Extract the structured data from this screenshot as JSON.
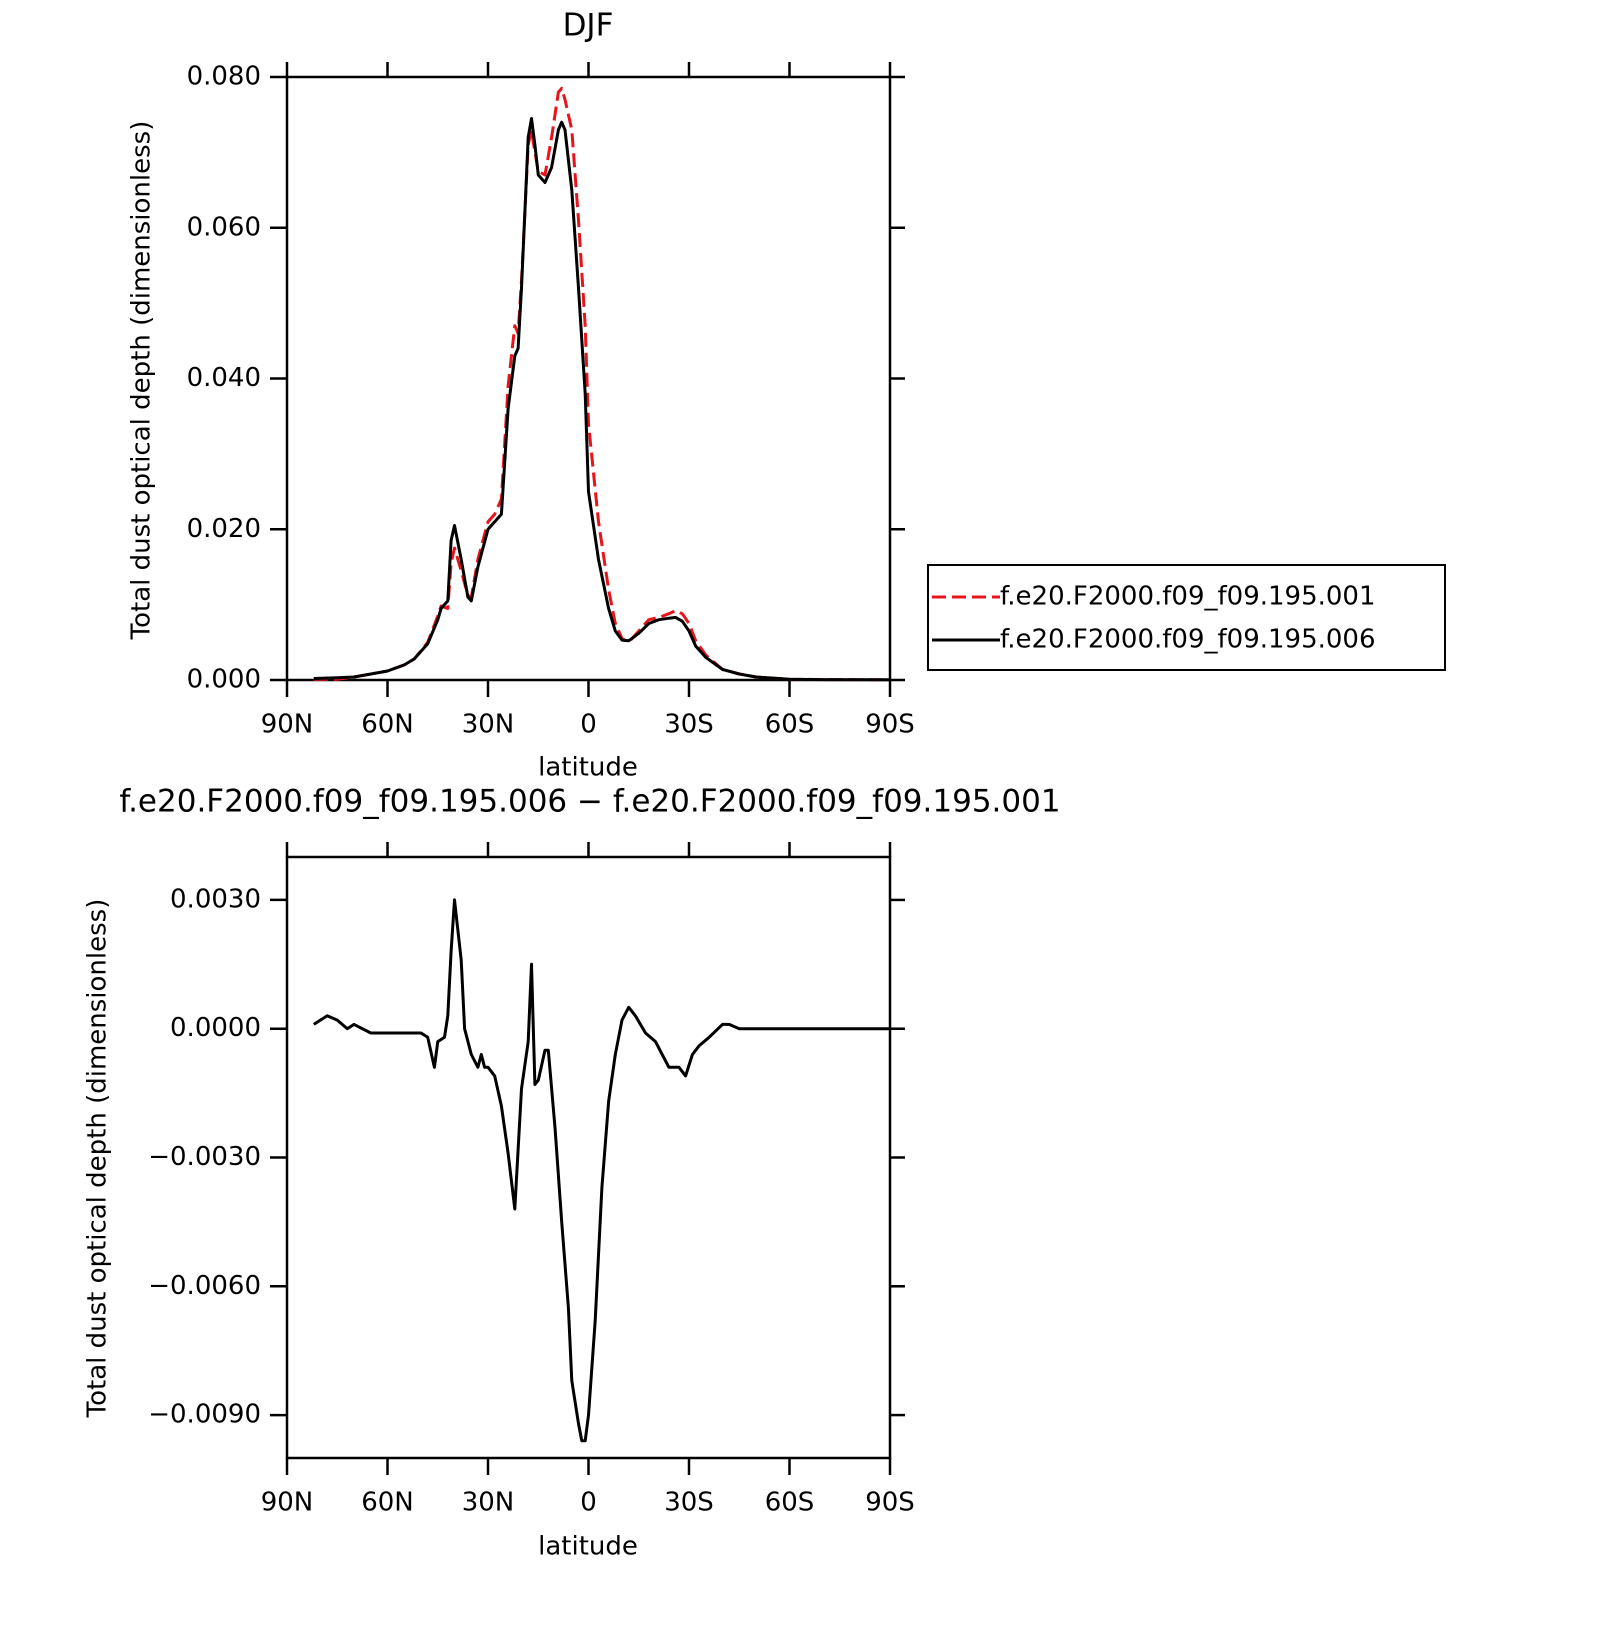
{
  "chart_data": [
    {
      "type": "line",
      "title": "DJF",
      "xlabel": "latitude",
      "ylabel": "Total dust optical depth (dimensionless)",
      "x": [
        82,
        75,
        70,
        65,
        60,
        55,
        52,
        48,
        45,
        44,
        42,
        41,
        40,
        38,
        36,
        35,
        33,
        30,
        28,
        26,
        24,
        22,
        21,
        20,
        18,
        17,
        16,
        15,
        13,
        11,
        9,
        8,
        7,
        5,
        3,
        1,
        0,
        -3,
        -6,
        -8,
        -10,
        -12,
        -15,
        -18,
        -21,
        -24,
        -26,
        -28,
        -30,
        -32,
        -35,
        -40,
        -45,
        -50,
        -60,
        -70,
        -90
      ],
      "series": [
        {
          "name": "f.e20.F2000.f09_f09.195.001",
          "color": "#e8141b",
          "linestyle": "dashed",
          "values": [
            0.0001,
            0.0001,
            0.0004,
            0.0008,
            0.0012,
            0.002,
            0.0028,
            0.005,
            0.0085,
            0.0098,
            0.0095,
            0.0155,
            0.0175,
            0.0145,
            0.0112,
            0.011,
            0.016,
            0.021,
            0.022,
            0.024,
            0.039,
            0.047,
            0.046,
            0.053,
            0.071,
            0.073,
            0.07,
            0.0675,
            0.067,
            0.072,
            0.078,
            0.0785,
            0.077,
            0.073,
            0.061,
            0.047,
            0.034,
            0.021,
            0.012,
            0.0075,
            0.0055,
            0.005,
            0.0065,
            0.008,
            0.0083,
            0.0088,
            0.0092,
            0.0088,
            0.0075,
            0.0052,
            0.0033,
            0.0014,
            0.0008,
            0.0004,
            0.0001,
            5e-05,
            2e-05
          ]
        },
        {
          "name": "f.e20.F2000.f09_f09.195.006",
          "color": "#000000",
          "linestyle": "solid",
          "values": [
            0.0002,
            0.0003,
            0.0004,
            0.0008,
            0.0012,
            0.002,
            0.0028,
            0.0048,
            0.008,
            0.0095,
            0.0105,
            0.0185,
            0.0205,
            0.016,
            0.011,
            0.0105,
            0.015,
            0.02,
            0.021,
            0.022,
            0.036,
            0.043,
            0.044,
            0.052,
            0.072,
            0.0745,
            0.071,
            0.067,
            0.066,
            0.068,
            0.073,
            0.074,
            0.073,
            0.065,
            0.052,
            0.038,
            0.025,
            0.016,
            0.0095,
            0.0065,
            0.0053,
            0.0052,
            0.0062,
            0.0075,
            0.008,
            0.0082,
            0.0083,
            0.0078,
            0.0065,
            0.0045,
            0.003,
            0.0014,
            0.0008,
            0.0004,
            0.0001,
            5e-05,
            2e-05
          ]
        }
      ],
      "xlim": [
        90,
        -90
      ],
      "xticks": [
        {
          "value": 90,
          "label": "90N"
        },
        {
          "value": 60,
          "label": "60N"
        },
        {
          "value": 30,
          "label": "30N"
        },
        0,
        {
          "value": -30,
          "label": "30S"
        },
        {
          "value": -60,
          "label": "60S"
        },
        {
          "value": -90,
          "label": "90S"
        }
      ],
      "ylim": [
        0,
        0.08
      ],
      "yticks": [
        {
          "value": 0,
          "label": "0.000"
        },
        {
          "value": 0.02,
          "label": "0.020"
        },
        {
          "value": 0.04,
          "label": "0.040"
        },
        {
          "value": 0.06,
          "label": "0.060"
        },
        {
          "value": 0.08,
          "label": "0.080"
        }
      ],
      "legend": "right"
    },
    {
      "type": "line",
      "title": "f.e20.F2000.f09_f09.195.006 − f.e20.F2000.f09_f09.195.001",
      "xlabel": "latitude",
      "ylabel": "Total dust optical depth (dimensionless)",
      "x": [
        82,
        78,
        75,
        72,
        70,
        65,
        60,
        55,
        50,
        48,
        46,
        45,
        43,
        42,
        41,
        40,
        38,
        37,
        35,
        33,
        32,
        31,
        30,
        28,
        26,
        24,
        22,
        20,
        18,
        17,
        16,
        15,
        13,
        12,
        10,
        8,
        6,
        5,
        3,
        2,
        1,
        0,
        -2,
        -4,
        -6,
        -8,
        -10,
        -12,
        -14,
        -17,
        -20,
        -22,
        -24,
        -27,
        -29,
        -31,
        -33,
        -36,
        -40,
        -42,
        -45,
        -55,
        -90
      ],
      "values": [
        0.0001,
        0.0003,
        0.0002,
        0,
        0.0001,
        -0.0001,
        -0.0001,
        -0.0001,
        -0.0001,
        -0.0002,
        -0.0009,
        -0.0003,
        -0.0002,
        0.0003,
        0.0018,
        0.003,
        0.0016,
        0,
        -0.0006,
        -0.0009,
        -0.0006,
        -0.0009,
        -0.0009,
        -0.0011,
        -0.0018,
        -0.0029,
        -0.0042,
        -0.0014,
        -0.0003,
        0.0015,
        -0.0013,
        -0.0012,
        -0.0005,
        -0.0005,
        -0.0023,
        -0.0045,
        -0.0065,
        -0.0082,
        -0.0092,
        -0.0096,
        -0.0096,
        -0.009,
        -0.0068,
        -0.0037,
        -0.0017,
        -0.0006,
        0.0002,
        0.0005,
        0.0003,
        -0.0001,
        -0.0003,
        -0.0006,
        -0.0009,
        -0.0009,
        -0.0011,
        -0.0006,
        -0.0004,
        -0.0002,
        0.0001,
        0.0001,
        0,
        0,
        0
      ],
      "color": "#000000",
      "xlim": [
        90,
        -90
      ],
      "xticks": [
        {
          "value": 90,
          "label": "90N"
        },
        {
          "value": 60,
          "label": "60N"
        },
        {
          "value": 30,
          "label": "30N"
        },
        0,
        {
          "value": -30,
          "label": "30S"
        },
        {
          "value": -60,
          "label": "60S"
        },
        {
          "value": -90,
          "label": "90S"
        }
      ],
      "ylim": [
        -0.01,
        0.004
      ],
      "yticks": [
        {
          "value": 0.003,
          "label": "0.0030"
        },
        {
          "value": 0,
          "label": "0.0000"
        },
        {
          "value": -0.003,
          "label": "−0.0030"
        },
        {
          "value": -0.006,
          "label": "−0.0060"
        },
        {
          "value": -0.009,
          "label": "−0.0090"
        }
      ]
    }
  ]
}
